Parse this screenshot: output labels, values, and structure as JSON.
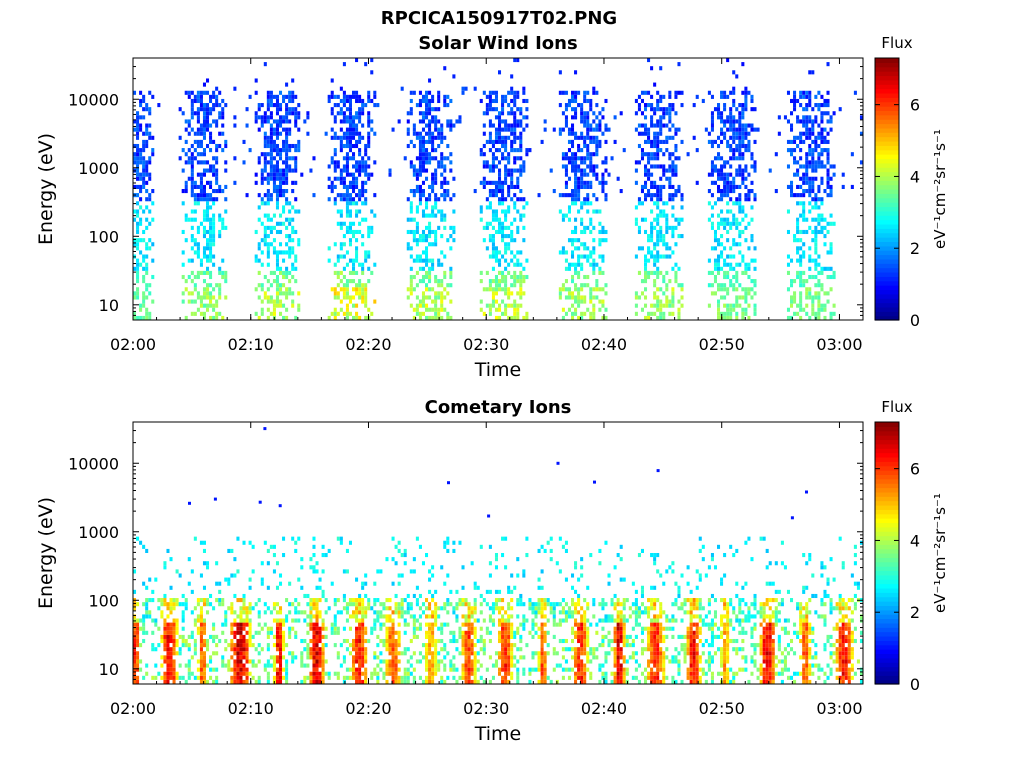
{
  "figure": {
    "title": "RPCICA150917T02.PNG",
    "bg_color": "#ffffff"
  },
  "chart_data": [
    {
      "type": "heatmap",
      "title": "Solar Wind Ions",
      "xlabel": "Time",
      "ylabel": "Energy (eV)",
      "y_scale": "log",
      "ylim": [
        6,
        40000
      ],
      "xlim": [
        "02:00",
        "03:02"
      ],
      "x_tick_labels": [
        "02:00",
        "02:10",
        "02:20",
        "02:30",
        "02:40",
        "02:50",
        "03:00"
      ],
      "x_tick_minutes": [
        0,
        10,
        20,
        30,
        40,
        50,
        60
      ],
      "x_range_minutes": [
        0,
        62
      ],
      "y_tick_labels": [
        "10",
        "100",
        "1000",
        "10000"
      ],
      "y_tick_values": [
        10,
        100,
        1000,
        10000
      ],
      "colorbar": {
        "label": "Flux",
        "unit_label": "eV⁻¹cm⁻²sr⁻¹s⁻¹",
        "range": [
          0,
          7.3
        ],
        "tick_labels": [
          "0",
          "2",
          "4",
          "6"
        ],
        "tick_values": [
          0,
          2,
          4,
          6
        ]
      },
      "seed": 17,
      "bursts": [
        {
          "center_min": 0.8,
          "width_min": 1.6,
          "peak_flux": 3.8
        },
        {
          "center_min": 6.1,
          "width_min": 3.4,
          "peak_flux": 4.3
        },
        {
          "center_min": 12.3,
          "width_min": 3.4,
          "peak_flux": 4.6
        },
        {
          "center_min": 18.6,
          "width_min": 3.6,
          "peak_flux": 5.0
        },
        {
          "center_min": 25.3,
          "width_min": 3.6,
          "peak_flux": 4.6
        },
        {
          "center_min": 31.6,
          "width_min": 3.6,
          "peak_flux": 4.6
        },
        {
          "center_min": 38.2,
          "width_min": 3.6,
          "peak_flux": 4.4
        },
        {
          "center_min": 44.6,
          "width_min": 3.6,
          "peak_flux": 4.4
        },
        {
          "center_min": 51.0,
          "width_min": 3.6,
          "peak_flux": 4.0
        },
        {
          "center_min": 57.6,
          "width_min": 3.6,
          "peak_flux": 4.0
        }
      ],
      "population": "solar_wind"
    },
    {
      "type": "heatmap",
      "title": "Cometary Ions",
      "xlabel": "Time",
      "ylabel": "Energy (eV)",
      "y_scale": "log",
      "ylim": [
        6,
        40000
      ],
      "xlim": [
        "02:00",
        "03:02"
      ],
      "x_tick_labels": [
        "02:00",
        "02:10",
        "02:20",
        "02:30",
        "02:40",
        "02:50",
        "03:00"
      ],
      "x_tick_minutes": [
        0,
        10,
        20,
        30,
        40,
        50,
        60
      ],
      "x_range_minutes": [
        0,
        62
      ],
      "y_tick_labels": [
        "10",
        "100",
        "1000",
        "10000"
      ],
      "y_tick_values": [
        10,
        100,
        1000,
        10000
      ],
      "colorbar": {
        "label": "Flux",
        "unit_label": "eV⁻¹cm⁻²sr⁻¹s⁻¹",
        "range": [
          0,
          7.3
        ],
        "tick_labels": [
          "0",
          "2",
          "4",
          "6"
        ],
        "tick_values": [
          0,
          2,
          4,
          6
        ]
      },
      "seed": 29,
      "hotspots": [
        {
          "center_min": 0.2,
          "width_min": 0.8,
          "peak_flux": 6.6
        },
        {
          "center_min": 3.1,
          "width_min": 1.4,
          "peak_flux": 7.0
        },
        {
          "center_min": 5.9,
          "width_min": 0.8,
          "peak_flux": 6.2
        },
        {
          "center_min": 9.1,
          "width_min": 1.8,
          "peak_flux": 7.3
        },
        {
          "center_min": 12.4,
          "width_min": 0.8,
          "peak_flux": 7.0
        },
        {
          "center_min": 15.6,
          "width_min": 1.3,
          "peak_flux": 7.2
        },
        {
          "center_min": 19.2,
          "width_min": 1.4,
          "peak_flux": 6.8
        },
        {
          "center_min": 22.1,
          "width_min": 1.4,
          "peak_flux": 6.2
        },
        {
          "center_min": 25.3,
          "width_min": 1.1,
          "peak_flux": 5.6
        },
        {
          "center_min": 28.5,
          "width_min": 1.3,
          "peak_flux": 6.4
        },
        {
          "center_min": 31.6,
          "width_min": 1.3,
          "peak_flux": 6.6
        },
        {
          "center_min": 34.8,
          "width_min": 0.7,
          "peak_flux": 6.4
        },
        {
          "center_min": 38.0,
          "width_min": 1.3,
          "peak_flux": 6.6
        },
        {
          "center_min": 41.3,
          "width_min": 1.0,
          "peak_flux": 7.1
        },
        {
          "center_min": 44.4,
          "width_min": 1.6,
          "peak_flux": 6.6
        },
        {
          "center_min": 47.6,
          "width_min": 1.3,
          "peak_flux": 6.8
        },
        {
          "center_min": 50.3,
          "width_min": 0.7,
          "peak_flux": 5.8
        },
        {
          "center_min": 53.9,
          "width_min": 1.4,
          "peak_flux": 7.0
        },
        {
          "center_min": 57.1,
          "width_min": 1.0,
          "peak_flux": 6.2
        },
        {
          "center_min": 60.4,
          "width_min": 1.6,
          "peak_flux": 6.8
        }
      ],
      "sparse_points": [
        {
          "min": 11.2,
          "energy": 32000
        },
        {
          "min": 36.1,
          "energy": 10000
        },
        {
          "min": 44.6,
          "energy": 7800
        },
        {
          "min": 4.8,
          "energy": 2600
        },
        {
          "min": 7.0,
          "energy": 3000
        },
        {
          "min": 10.8,
          "energy": 2700
        },
        {
          "min": 12.5,
          "energy": 2400
        },
        {
          "min": 26.8,
          "energy": 5200
        },
        {
          "min": 30.2,
          "energy": 1700
        },
        {
          "min": 39.2,
          "energy": 5300
        },
        {
          "min": 57.2,
          "energy": 3800
        },
        {
          "min": 56.0,
          "energy": 1600
        }
      ],
      "population": "cometary"
    }
  ]
}
